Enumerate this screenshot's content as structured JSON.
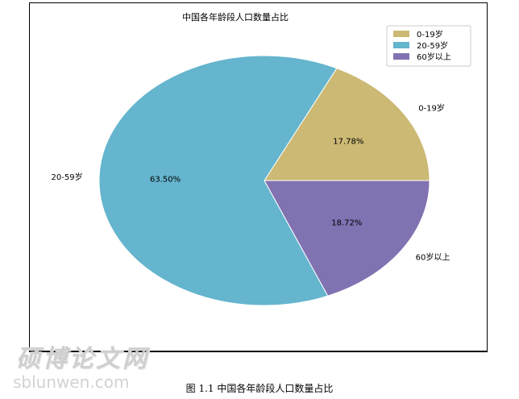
{
  "chart_data": {
    "type": "pie",
    "title": "中国各年龄段人口数量占比",
    "categories": [
      "0-19岁",
      "20-59岁",
      "60岁以上"
    ],
    "values": [
      17.78,
      63.5,
      18.72
    ],
    "percent_labels": [
      "17.78%",
      "63.50%",
      "18.72%"
    ],
    "colors": [
      "#ccb974",
      "#64b5cd",
      "#8172b2"
    ],
    "legend": {
      "placement": "top-right",
      "entries": [
        "0-19岁",
        "20-59岁",
        "60岁以上"
      ]
    }
  },
  "watermark": {
    "chinese": "硕博论文网",
    "url": "sblunwen.com"
  },
  "caption": "图 1.1   中国各年龄段人口数量占比"
}
